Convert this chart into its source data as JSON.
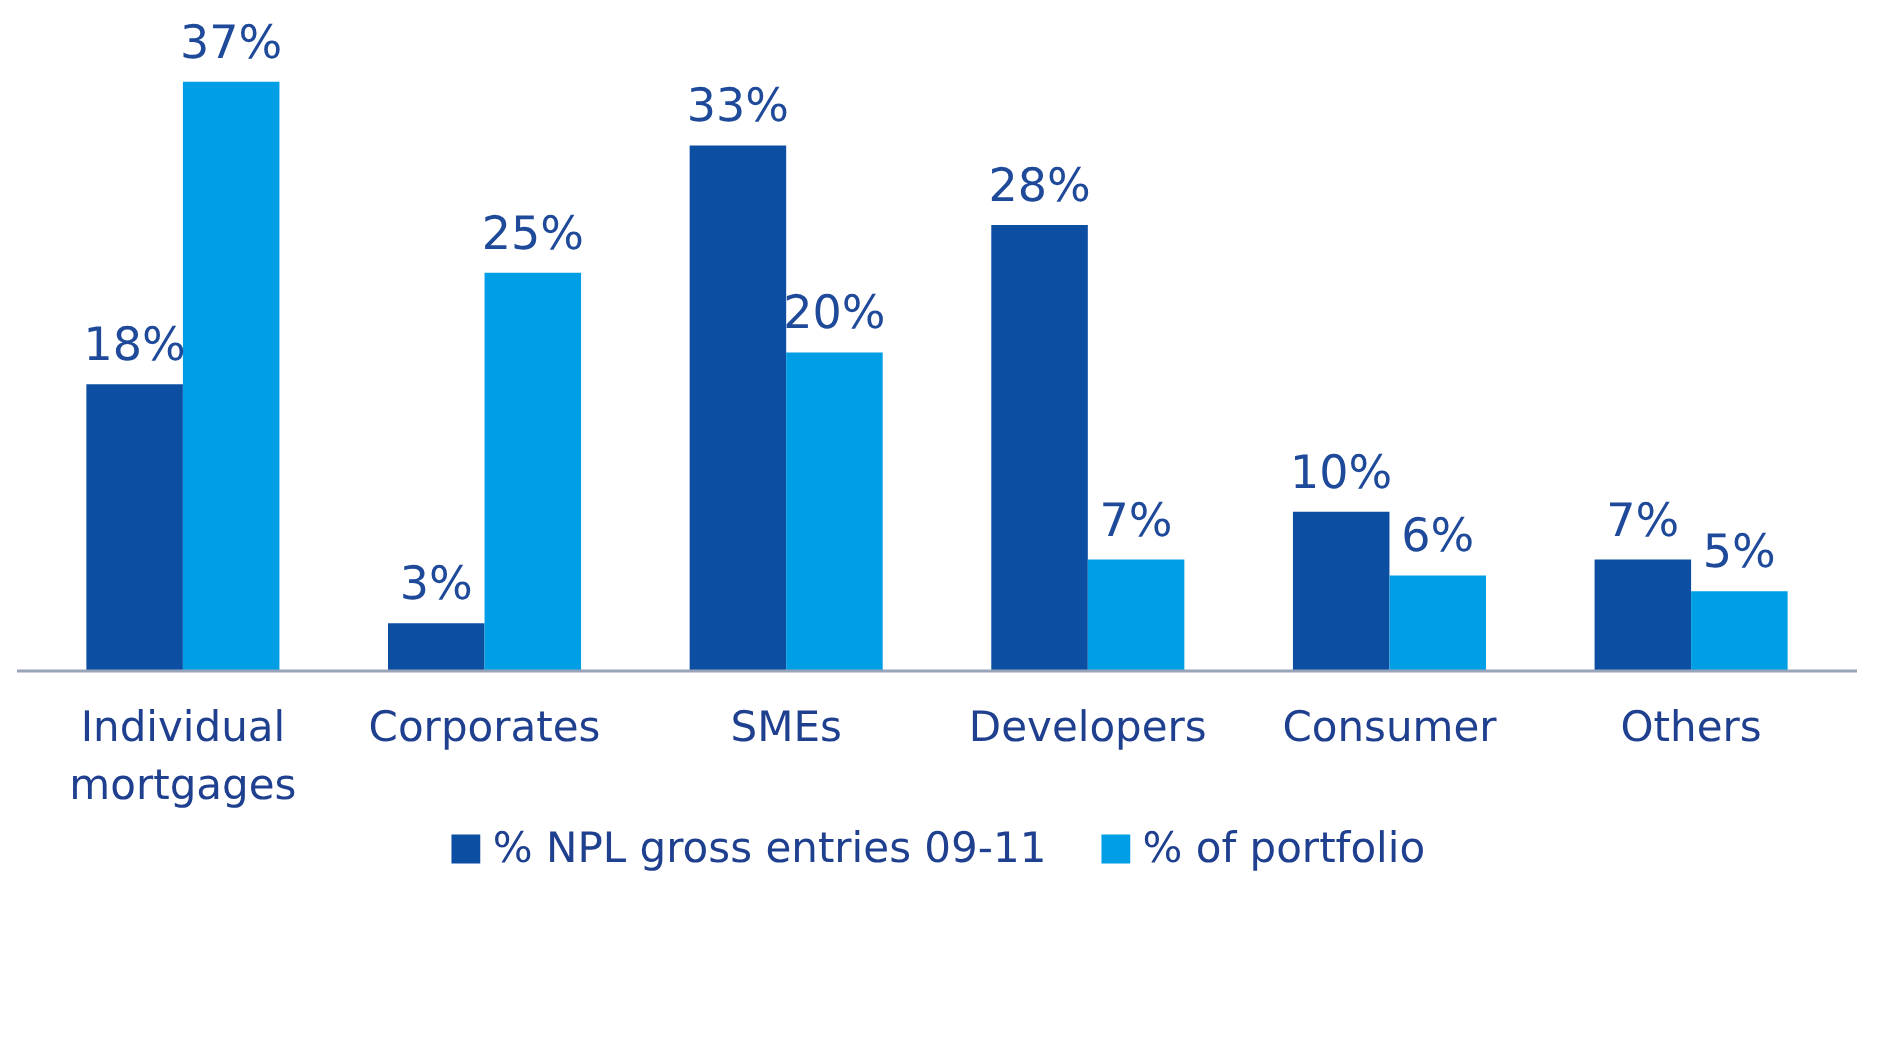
{
  "chart_data": {
    "type": "bar",
    "categories": [
      "Individual mortgages",
      "Corporates",
      "SMEs",
      "Developers",
      "Consumer",
      "Others"
    ],
    "series": [
      {
        "name": "% NPL gross entries 09-11",
        "color": "#0b4ea2",
        "values": [
          18,
          3,
          33,
          28,
          10,
          7
        ],
        "value_labels": [
          "18%",
          "3%",
          "33%",
          "28%",
          "10%",
          "7%"
        ]
      },
      {
        "name": "% of portfolio",
        "color": "#009ee5",
        "values": [
          37,
          25,
          20,
          7,
          6,
          5
        ],
        "value_labels": [
          "37%",
          "25%",
          "20%",
          "7%",
          "6%",
          "5%"
        ]
      }
    ],
    "legend": "bottom"
  }
}
